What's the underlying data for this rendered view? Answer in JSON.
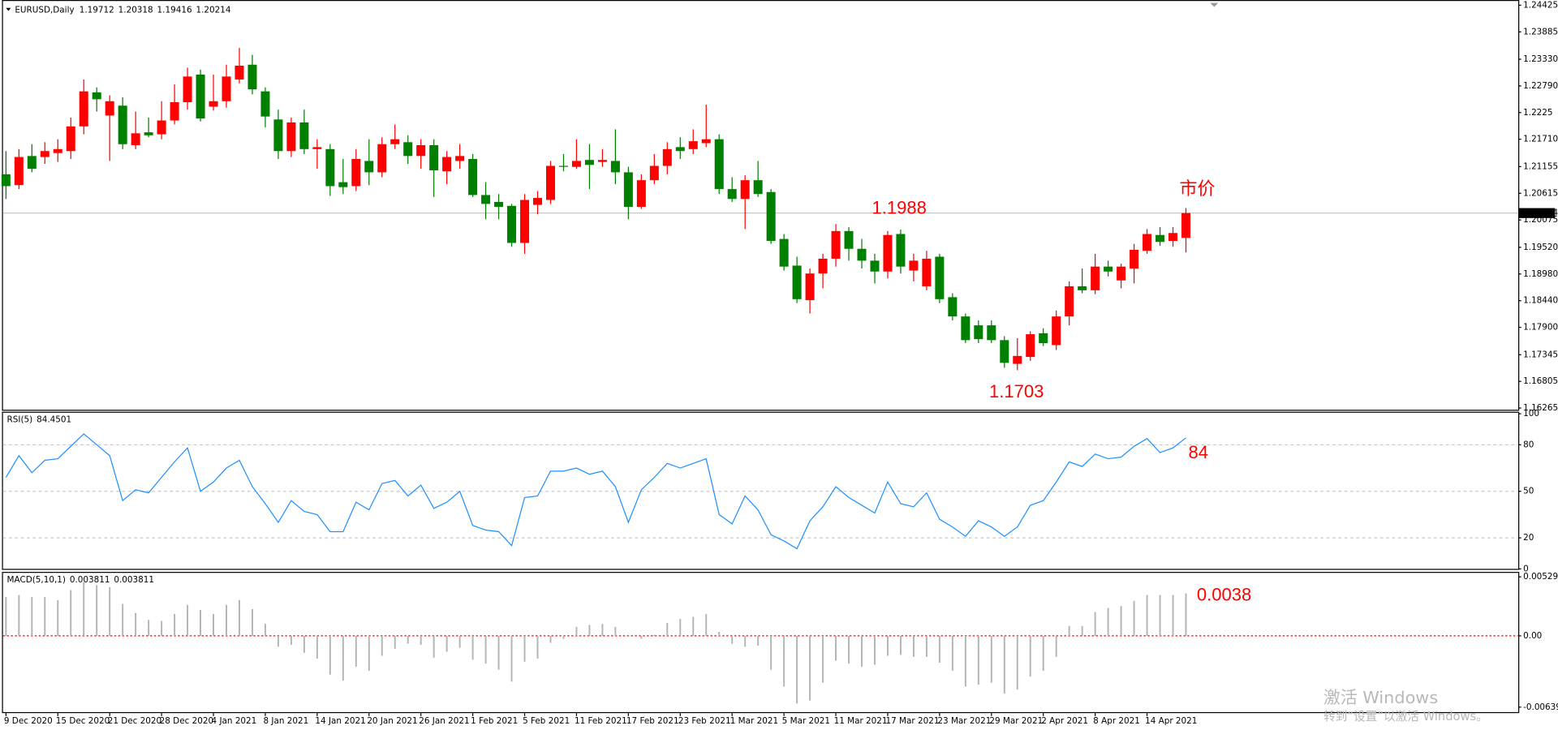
{
  "chart_data": [
    {
      "type": "candlestick",
      "title": "EURUSD,Daily",
      "categories": [
        "9 Dec 2020",
        null,
        null,
        null,
        "15 Dec 2020",
        null,
        null,
        null,
        "21 Dec 2020",
        null,
        null,
        null,
        "28 Dec 2020",
        null,
        null,
        null,
        "4 Jan 2021",
        null,
        null,
        null,
        "8 Jan 2021",
        null,
        null,
        null,
        "14 Jan 2021",
        null,
        null,
        null,
        "20 Jan 2021",
        null,
        null,
        null,
        "26 Jan 2021",
        null,
        null,
        null,
        "1 Feb 2021",
        null,
        null,
        null,
        "5 Feb 2021",
        null,
        null,
        null,
        "11 Feb 2021",
        null,
        null,
        null,
        "17 Feb 2021",
        null,
        null,
        null,
        "23 Feb 2021",
        null,
        null,
        null,
        "1 Mar 2021",
        null,
        null,
        null,
        "5 Mar 2021",
        null,
        null,
        null,
        "11 Mar 2021",
        null,
        null,
        null,
        "17 Mar 2021",
        null,
        null,
        null,
        "23 Mar 2021",
        null,
        null,
        null,
        "29 Mar 2021",
        null,
        null,
        null,
        "2 Apr 2021",
        null,
        null,
        null,
        "8 Apr 2021",
        null,
        null,
        null,
        "14 Apr 2021",
        null,
        null,
        null
      ],
      "open": [
        1.21,
        1.2078,
        1.2137,
        1.2135,
        1.2143,
        1.2147,
        1.2197,
        1.2266,
        1.2219,
        1.2239,
        1.2159,
        1.2185,
        1.2181,
        1.2209,
        1.2246,
        1.2302,
        1.2237,
        1.2248,
        1.2292,
        1.2322,
        1.2268,
        1.2211,
        1.2147,
        1.2205,
        1.2151,
        1.2151,
        1.2084,
        1.2076,
        1.2127,
        1.2104,
        1.2161,
        1.2165,
        1.2137,
        1.2159,
        1.2106,
        1.2127,
        1.2131,
        1.2058,
        1.2044,
        1.2036,
        1.1961,
        1.2038,
        1.2048,
        1.2117,
        1.2115,
        1.2129,
        1.2125,
        1.2127,
        1.2104,
        1.2034,
        1.2088,
        1.2117,
        1.2155,
        1.2151,
        1.2163,
        1.2171,
        1.207,
        1.205,
        1.2088,
        1.2064,
        1.1969,
        1.1915,
        1.1845,
        1.1899,
        1.1929,
        1.1985,
        1.1949,
        1.1925,
        1.1903,
        1.1979,
        1.1905,
        1.1873,
        1.1933,
        1.1851,
        1.1812,
        1.1794,
        1.1794,
        1.1764,
        1.1716,
        1.173,
        1.1778,
        1.1754,
        1.1812,
        1.1873,
        1.1865,
        1.1913,
        1.1885,
        1.1909,
        1.1945,
        1.1977,
        1.1965,
        1.19712
      ],
      "high": [
        1.2147,
        1.2151,
        1.2161,
        1.2165,
        1.2171,
        1.2215,
        1.2292,
        1.2276,
        1.226,
        1.2256,
        1.2227,
        1.2215,
        1.2248,
        1.2282,
        1.2316,
        1.2312,
        1.2302,
        1.2322,
        1.2356,
        1.2342,
        1.2276,
        1.2231,
        1.2215,
        1.2231,
        1.2171,
        1.2161,
        1.2131,
        1.2151,
        1.2171,
        1.2175,
        1.2201,
        1.2179,
        1.2171,
        1.2171,
        1.2147,
        1.2161,
        1.2141,
        1.2084,
        1.206,
        1.204,
        1.206,
        1.2066,
        1.2127,
        1.2141,
        1.2171,
        1.2161,
        1.2151,
        1.2191,
        1.2115,
        1.21,
        1.2141,
        1.2165,
        1.2175,
        1.2191,
        1.2241,
        1.2181,
        1.2094,
        1.2098,
        1.2127,
        1.207,
        1.1979,
        1.1933,
        1.1909,
        1.1939,
        1.1999,
        1.1993,
        1.1969,
        1.1939,
        1.1985,
        1.1988,
        1.1939,
        1.1945,
        1.1939,
        1.1859,
        1.1818,
        1.1804,
        1.1804,
        1.1772,
        1.1768,
        1.1782,
        1.1788,
        1.1824,
        1.1883,
        1.1909,
        1.1939,
        1.1925,
        1.1919,
        1.1959,
        1.1989,
        1.1993,
        1.1993,
        1.20318
      ],
      "low": [
        1.205,
        1.207,
        1.2104,
        1.2121,
        1.2125,
        1.2131,
        1.2181,
        1.2227,
        1.2127,
        1.2151,
        1.2151,
        1.2175,
        1.2171,
        1.2201,
        1.2231,
        1.2207,
        1.2229,
        1.2235,
        1.2284,
        1.2262,
        1.2195,
        1.2131,
        1.2135,
        1.2141,
        1.2111,
        1.2056,
        1.206,
        1.2066,
        1.2078,
        1.2094,
        1.2151,
        1.2121,
        1.2111,
        1.2054,
        1.208,
        1.2111,
        1.2054,
        1.2009,
        1.2009,
        1.1953,
        1.1939,
        1.2019,
        1.204,
        1.2106,
        1.2111,
        1.207,
        1.2115,
        1.208,
        1.2009,
        1.203,
        1.208,
        1.21,
        1.2131,
        1.2141,
        1.2155,
        1.206,
        1.2044,
        1.1989,
        1.2054,
        1.1959,
        1.1905,
        1.1839,
        1.1818,
        1.1869,
        1.1913,
        1.1925,
        1.1909,
        1.1879,
        1.1889,
        1.1899,
        1.1883,
        1.1865,
        1.1839,
        1.1804,
        1.1758,
        1.1758,
        1.1758,
        1.1708,
        1.1703,
        1.1722,
        1.1752,
        1.1744,
        1.1794,
        1.1859,
        1.1857,
        1.1893,
        1.1869,
        1.1879,
        1.1939,
        1.1955,
        1.1953,
        1.19416
      ],
      "close": [
        1.2076,
        1.2135,
        1.2111,
        1.2147,
        1.2151,
        1.2197,
        1.2268,
        1.2252,
        1.2248,
        1.2161,
        1.2183,
        1.2179,
        1.2209,
        1.2246,
        1.2298,
        1.2213,
        1.2248,
        1.2298,
        1.232,
        1.2272,
        1.2217,
        1.2147,
        1.2205,
        1.2151,
        1.2155,
        1.2076,
        1.2074,
        1.2131,
        1.2104,
        1.2161,
        1.2171,
        1.2137,
        1.2159,
        1.2108,
        1.2135,
        1.2137,
        1.2058,
        1.204,
        1.2034,
        1.1961,
        1.2048,
        1.2052,
        1.2117,
        1.2115,
        1.2127,
        1.2119,
        1.2129,
        1.2104,
        1.2034,
        1.2088,
        1.2117,
        1.2151,
        1.2147,
        1.2167,
        1.2171,
        1.207,
        1.205,
        1.2088,
        1.206,
        1.1965,
        1.1913,
        1.1847,
        1.1899,
        1.1929,
        1.1985,
        1.1949,
        1.1925,
        1.1903,
        1.1977,
        1.1913,
        1.1925,
        1.1929,
        1.1847,
        1.1812,
        1.1764,
        1.1766,
        1.1764,
        1.1718,
        1.1732,
        1.1776,
        1.1758,
        1.1812,
        1.1873,
        1.1865,
        1.1913,
        1.1903,
        1.1913,
        1.1947,
        1.1979,
        1.1963,
        1.1981,
        1.20214
      ],
      "up_color": "#ff0000",
      "down_color": "#008000",
      "ylim": [
        1.1625,
        1.2449
      ],
      "yticks": [
        1.24425,
        1.23885,
        {
          "value": 1.2333,
          "label": "1.23330"
        },
        {
          "value": 1.2279,
          "label": "1.22790"
        },
        1.2225,
        {
          "value": 1.2171,
          "label": "1.21710"
        },
        1.21155,
        1.20615,
        1.20075,
        {
          "value": 1.1952,
          "label": "1.19520"
        },
        {
          "value": 1.1898,
          "label": "1.18980"
        },
        {
          "value": 1.1844,
          "label": "1.18440"
        },
        {
          "value": 1.179,
          "label": "1.17900"
        },
        1.17345,
        1.16805,
        1.16265
      ],
      "annotations": [
        "1.1988",
        "1.1703",
        "市价"
      ]
    },
    {
      "type": "line",
      "title": "RSI(5)",
      "color": "#1e90ff",
      "values": [
        59,
        73,
        62,
        70,
        71,
        79,
        87,
        80,
        73,
        44,
        51,
        49,
        59,
        69,
        78,
        50,
        56,
        65,
        70,
        53,
        42,
        30,
        44,
        37,
        35,
        24,
        24,
        43,
        38,
        55,
        57,
        47,
        54,
        39,
        43,
        50,
        28,
        25,
        24,
        15,
        46,
        47,
        63,
        63,
        65,
        61,
        63,
        53,
        30,
        51,
        59,
        68,
        65,
        68,
        71,
        35,
        29,
        47,
        38,
        22,
        18,
        13,
        31,
        40,
        53,
        46,
        41,
        36,
        56,
        42,
        40,
        49,
        32,
        27,
        21,
        31,
        27,
        21,
        27,
        41,
        44,
        56,
        69,
        66,
        74,
        71,
        72,
        79,
        84,
        75,
        78,
        84.4501
      ],
      "ylim": [
        0,
        100
      ],
      "yticks": [
        0,
        20,
        50,
        80,
        100
      ],
      "grid": true,
      "annotations": [
        "84"
      ]
    },
    {
      "type": "bar",
      "title": "MACD(5,10,1)",
      "color": "#b4b4b4",
      "zero_line_color": "#ff0000",
      "values": [
        0.00348,
        0.00366,
        0.00348,
        0.00348,
        0.00321,
        0.00411,
        0.00482,
        0.00455,
        0.00438,
        0.00286,
        0.00205,
        0.00143,
        0.00134,
        0.00196,
        0.00277,
        0.00232,
        0.00196,
        0.00277,
        0.00321,
        0.00241,
        0.00107,
        -0.00098,
        -0.0008,
        -0.00152,
        -0.00205,
        -0.00348,
        -0.00402,
        -0.00277,
        -0.00313,
        -0.00179,
        -0.00116,
        -0.00071,
        -0.0008,
        -0.00196,
        -0.00143,
        -0.00107,
        -0.00214,
        -0.0025,
        -0.00304,
        -0.00411,
        -0.00232,
        -0.00205,
        -0.00063,
        -0.00027,
        0.0008,
        0.00098,
        0.00107,
        0.0008,
        -9e-05,
        -0.00027,
        9e-05,
        0.00116,
        0.00152,
        0.0017,
        0.00196,
        0.00036,
        -0.00071,
        -0.00098,
        -0.00089,
        -0.00304,
        -0.00455,
        -0.00607,
        -0.0058,
        -0.0042,
        -0.00223,
        -0.0025,
        -0.00277,
        -0.00259,
        -0.00179,
        -0.0017,
        -0.00188,
        -0.00188,
        -0.00241,
        -0.00313,
        -0.00455,
        -0.00438,
        -0.0042,
        -0.00518,
        -0.00482,
        -0.00366,
        -0.00313,
        -0.00188,
        0.00089,
        0.00089,
        0.00214,
        0.0025,
        0.00268,
        0.00313,
        0.00366,
        0.00366,
        0.00366,
        0.003811
      ],
      "ylim": [
        -0.006394,
        0.005292
      ],
      "yticks": [
        -0.006394,
        {
          "value": 0,
          "label": "0.00"
        },
        0.005292
      ],
      "annotations": [
        "0.0038"
      ]
    }
  ],
  "watermark": {
    "line1": "激活 Windows",
    "line2": "转到“设置”以激活 Windows。"
  }
}
